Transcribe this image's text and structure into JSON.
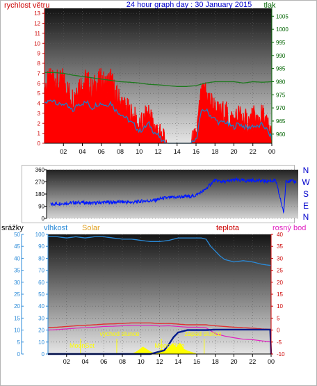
{
  "header": {
    "title": "24 hour graph day : 30 January 2015",
    "left_label": "rychlost větru",
    "right_label": "tlak"
  },
  "panel2": {
    "right_letters": [
      "N",
      "W",
      "S",
      "E",
      "N"
    ]
  },
  "panel3": {
    "labels": {
      "rain": "srážky",
      "humidity": "vlhkost",
      "solar": "Solar",
      "temperature": "teplota",
      "dewpoint": "rosný bod"
    },
    "events": {
      "moonset": "MoonSet",
      "sunrise": "východ slunce",
      "moonrise": "Moon Rise",
      "sunset": "západ slunce"
    }
  },
  "colors": {
    "wind_gust": "#ff0000",
    "wind_avg": "#1e7fc8",
    "pressure": "#1e7a1e",
    "direction": "#0018ff",
    "humidity": "#2a8ad8",
    "temperature": "#e03030",
    "dewpoint": "#e020c0",
    "rain": "#001a8c",
    "solar": "#ffff00",
    "title": "#0000cc",
    "left_axis": "#cc0000",
    "right_axis": "#006400",
    "rain_axis": "#2a8ad8",
    "solar_label": "#e0a020",
    "temp_axis": "#cc0000"
  },
  "chart_data": [
    {
      "type": "line",
      "name": "wind-pressure",
      "x_ticks": [
        "02",
        "04",
        "06",
        "08",
        "10",
        "12",
        "14",
        "16",
        "18",
        "20",
        "22",
        "00"
      ],
      "x_range_hours": [
        0,
        24
      ],
      "y_left_ticks": [
        0,
        1,
        2,
        3,
        4,
        5,
        6,
        7,
        8,
        9,
        10,
        11,
        12,
        13
      ],
      "y_left_range": [
        0,
        13.5
      ],
      "y_right_ticks": [
        960,
        965,
        970,
        975,
        980,
        985,
        990,
        995,
        1000,
        1005
      ],
      "y_right_range": [
        956.5,
        1008
      ],
      "series": [
        {
          "key": "gust",
          "hours": [
            0,
            0.5,
            1,
            1.5,
            2,
            2.5,
            3,
            3.5,
            4,
            4.5,
            5,
            5.5,
            6,
            6.5,
            7,
            7.5,
            8,
            8.5,
            9,
            9.5,
            10,
            10.5,
            11,
            11.5,
            12,
            12.5,
            13,
            13.5,
            14,
            14.5,
            15,
            15.5,
            16,
            16.5,
            17,
            17.5,
            18,
            18.5,
            19,
            19.5,
            20,
            20.5,
            21,
            21.5,
            22,
            22.5,
            23,
            23.5,
            24
          ],
          "values": [
            5.5,
            6.2,
            6.8,
            5.8,
            6.5,
            5.2,
            4.5,
            5.8,
            6.0,
            6.4,
            5.2,
            6.0,
            6.3,
            5.8,
            6.5,
            4.8,
            4.2,
            3.6,
            3.0,
            2.5,
            1.5,
            2.2,
            3.2,
            1.8,
            1.2,
            0.2,
            0,
            0,
            0,
            0,
            0,
            0,
            0.5,
            4.5,
            5.2,
            4.2,
            3.5,
            2.8,
            3.2,
            2.5,
            2.2,
            2.8,
            2.4,
            2.0,
            2.6,
            2.2,
            2.8,
            1.8,
            0.8
          ]
        },
        {
          "key": "avg",
          "hours": [
            0,
            0.5,
            1,
            1.5,
            2,
            2.5,
            3,
            3.5,
            4,
            4.5,
            5,
            5.5,
            6,
            6.5,
            7,
            7.5,
            8,
            8.5,
            9,
            9.5,
            10,
            10.5,
            11,
            11.5,
            12,
            12.5,
            13,
            13.5,
            14,
            14.5,
            15,
            15.5,
            16,
            16.5,
            17,
            17.5,
            18,
            18.5,
            19,
            19.5,
            20,
            20.5,
            21,
            21.5,
            22,
            22.5,
            23,
            23.5,
            24
          ],
          "values": [
            4.0,
            4.2,
            4.4,
            3.8,
            4.0,
            3.6,
            3.2,
            3.9,
            4.0,
            4.1,
            3.5,
            3.9,
            4.0,
            3.8,
            4.1,
            3.3,
            3.0,
            2.6,
            2.2,
            1.8,
            1.2,
            1.5,
            2.0,
            1.2,
            0.8,
            0.1,
            0,
            0,
            0,
            0,
            0,
            0,
            0.3,
            3.0,
            3.4,
            2.8,
            2.4,
            2.0,
            2.2,
            1.8,
            1.6,
            2.0,
            1.7,
            1.5,
            1.8,
            1.6,
            1.9,
            1.3,
            0.5
          ]
        },
        {
          "key": "pressure",
          "hours": [
            0,
            1,
            2,
            3,
            4,
            5,
            6,
            7,
            8,
            9,
            10,
            11,
            12,
            13,
            14,
            15,
            16,
            17,
            18,
            19,
            20,
            21,
            22,
            23,
            24
          ],
          "values": [
            983.5,
            983.5,
            983.2,
            982.5,
            982.0,
            981.5,
            981.0,
            980.5,
            980.0,
            979.8,
            979.5,
            979.0,
            978.8,
            978.5,
            978.2,
            978.2,
            978.5,
            979.5,
            980.0,
            980.0,
            980.0,
            979.5,
            980.0,
            979.8,
            980.0
          ]
        }
      ]
    },
    {
      "type": "scatter",
      "name": "wind-direction",
      "x_range_hours": [
        0,
        24
      ],
      "y_ticks": [
        0,
        90,
        180,
        270,
        360
      ],
      "y_range": [
        0,
        360
      ],
      "series": [
        {
          "key": "direction",
          "hours": [
            0,
            1,
            2,
            3,
            4,
            5,
            6,
            7,
            8,
            9,
            10,
            11,
            12,
            13,
            14,
            15,
            16,
            17,
            18,
            19,
            20,
            21,
            22,
            22.8,
            23,
            24
          ],
          "values": [
            105,
            110,
            115,
            118,
            112,
            118,
            120,
            122,
            118,
            128,
            132,
            150,
            155,
            160,
            165,
            205,
            280,
            270,
            285,
            278,
            282,
            275,
            280,
            40,
            280,
            272
          ]
        }
      ]
    },
    {
      "type": "line",
      "name": "rain-humidity-solar-temperature",
      "x_ticks": [
        "02",
        "04",
        "06",
        "08",
        "10",
        "12",
        "14",
        "16",
        "18",
        "20",
        "22",
        "00"
      ],
      "x_range_hours": [
        0,
        24
      ],
      "y_rain_ticks": [
        0,
        5,
        10,
        15,
        20,
        25,
        30,
        35,
        40,
        45,
        50
      ],
      "y_rain_range": [
        0,
        50
      ],
      "y_humidity_ticks": [
        0,
        10,
        20,
        30,
        40,
        50,
        60,
        70,
        80,
        90,
        100
      ],
      "y_humidity_range": [
        0,
        100
      ],
      "y_solar_ticks": [
        0,
        2,
        4,
        6,
        8,
        10,
        12,
        14,
        16,
        18,
        20,
        22,
        24,
        26,
        28,
        30
      ],
      "y_solar_range": [
        0,
        30
      ],
      "y_temp_ticks": [
        -10,
        -5,
        0,
        5,
        10,
        15,
        20,
        25,
        30,
        35,
        40
      ],
      "y_temp_range": [
        -10,
        40
      ],
      "events_hours": {
        "moonset": 3.5,
        "sunrise": 7.4,
        "moonrise": 12.2,
        "sunset": 16.8
      },
      "series": [
        {
          "key": "humidity",
          "hours": [
            0,
            1,
            2,
            3,
            4,
            5,
            6,
            7,
            8,
            9,
            10,
            11,
            12,
            13,
            14,
            15,
            16,
            16.5,
            17,
            17.5,
            18,
            18.5,
            19,
            20,
            21,
            22,
            23,
            24
          ],
          "values": [
            98,
            98,
            97,
            98,
            97,
            98,
            98,
            97,
            96,
            96,
            95,
            94,
            94,
            95,
            97,
            97,
            97,
            97,
            96,
            90,
            86,
            82,
            79,
            77,
            78,
            77,
            75,
            74
          ]
        },
        {
          "key": "temperature",
          "hours": [
            0,
            1,
            2,
            3,
            4,
            5,
            6,
            7,
            8,
            9,
            10,
            11,
            12,
            13,
            14,
            15,
            16,
            17,
            18,
            19,
            20,
            21,
            22,
            23,
            24
          ],
          "values": [
            1.0,
            1.2,
            1.5,
            1.8,
            2.0,
            2.2,
            2.5,
            2.6,
            2.8,
            3.0,
            3.0,
            3.0,
            2.7,
            2.8,
            2.5,
            2.2,
            2.2,
            2.2,
            1.8,
            1.5,
            1.2,
            1.0,
            0.8,
            0.5,
            0.3
          ]
        },
        {
          "key": "dewpoint",
          "hours": [
            0,
            1,
            2,
            3,
            4,
            5,
            6,
            7,
            8,
            9,
            10,
            11,
            12,
            13,
            14,
            15,
            16,
            17,
            18,
            19,
            20,
            21,
            22,
            23,
            24
          ],
          "values": [
            0.0,
            0.2,
            0.5,
            0.8,
            1.0,
            1.2,
            1.5,
            1.6,
            1.8,
            2.0,
            2.0,
            2.0,
            1.7,
            1.8,
            1.5,
            1.2,
            1.2,
            1.0,
            -1.5,
            -2.5,
            -3.2,
            -3.8,
            -4.0,
            -4.5,
            -5.0
          ]
        },
        {
          "key": "rain",
          "hours": [
            0,
            11,
            11.5,
            12.5,
            13,
            13.5,
            14,
            15,
            16,
            17,
            18,
            19,
            20,
            21,
            22,
            23,
            23.9,
            24
          ],
          "values": [
            0,
            0,
            0.5,
            1.5,
            4,
            7,
            9,
            10,
            10,
            10,
            10.2,
            10.2,
            10.2,
            10.2,
            10.2,
            10.2,
            10.2,
            0
          ]
        },
        {
          "key": "solar",
          "hours": [
            0,
            9,
            9.4,
            9.8,
            10.2,
            10.6,
            11,
            11.4,
            11.8,
            12.2,
            12.6,
            13,
            13.4,
            13.8,
            14.2,
            14.6,
            15,
            15.5,
            16,
            24
          ],
          "values": [
            0,
            0,
            0.4,
            1.0,
            1.8,
            1.2,
            0.6,
            0.2,
            0.4,
            1.2,
            0.8,
            1.6,
            2.6,
            1.6,
            2.8,
            1.2,
            0.8,
            0.4,
            0,
            0
          ]
        }
      ]
    }
  ]
}
